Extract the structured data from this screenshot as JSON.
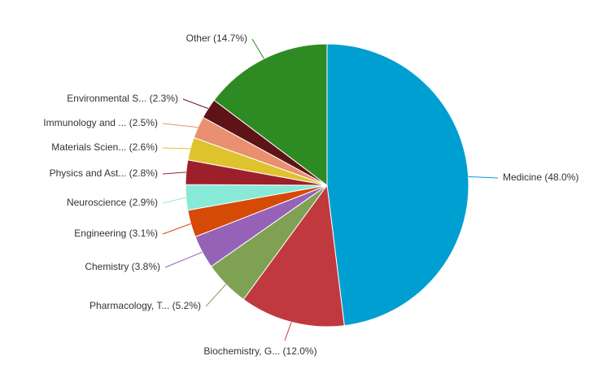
{
  "chart_data": {
    "type": "pie",
    "slices": [
      {
        "label": "Medicine (48.0%)",
        "value": 48.0,
        "color": "#009fd1"
      },
      {
        "label": "Biochemistry, G... (12.0%)",
        "value": 12.0,
        "color": "#c0393f"
      },
      {
        "label": "Pharmacology, T... (5.2%)",
        "value": 5.2,
        "color": "#7ea153"
      },
      {
        "label": "Chemistry (3.8%)",
        "value": 3.8,
        "color": "#9662b8"
      },
      {
        "label": "Engineering (3.1%)",
        "value": 3.1,
        "color": "#d54a06"
      },
      {
        "label": "Neuroscience (2.9%)",
        "value": 2.9,
        "color": "#88ead6"
      },
      {
        "label": "Physics and Ast... (2.8%)",
        "value": 2.8,
        "color": "#9e1f2c"
      },
      {
        "label": "Materials Scien... (2.6%)",
        "value": 2.6,
        "color": "#dec32d"
      },
      {
        "label": "Immunology and ... (2.5%)",
        "value": 2.5,
        "color": "#e8906f"
      },
      {
        "label": "Environmental S... (2.3%)",
        "value": 2.3,
        "color": "#5e1317"
      },
      {
        "label": "Other (14.7%)",
        "value": 14.7,
        "color": "#2e8b24"
      }
    ]
  }
}
